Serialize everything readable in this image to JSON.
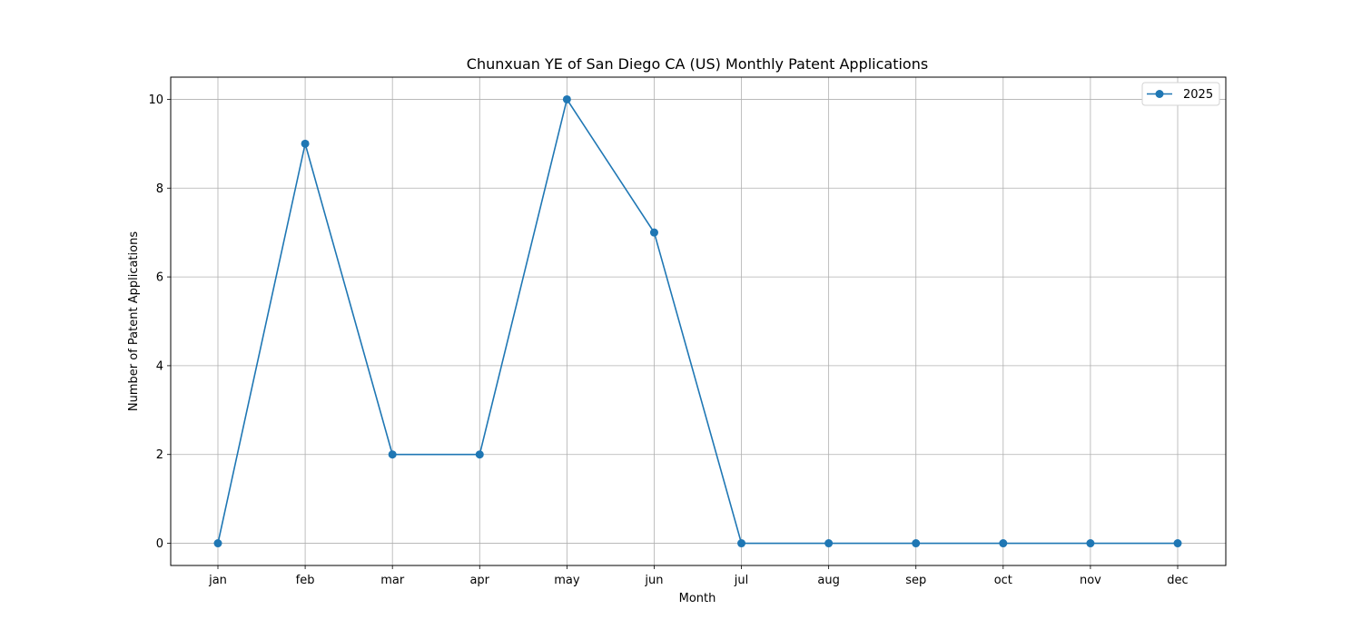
{
  "chart_data": {
    "type": "line",
    "title": "Chunxuan YE of San Diego CA (US) Monthly Patent Applications",
    "xlabel": "Month",
    "ylabel": "Number of Patent Applications",
    "categories": [
      "jan",
      "feb",
      "mar",
      "apr",
      "may",
      "jun",
      "jul",
      "aug",
      "sep",
      "oct",
      "nov",
      "dec"
    ],
    "series": [
      {
        "name": "2025",
        "values": [
          0,
          9,
          2,
          2,
          10,
          7,
          0,
          0,
          0,
          0,
          0,
          0
        ],
        "color": "#1f77b4"
      }
    ],
    "ylim": [
      -0.5,
      10.5
    ],
    "yticks": [
      0,
      2,
      4,
      6,
      8,
      10
    ],
    "grid": true,
    "legend_position": "top-right"
  },
  "colors": {
    "grid": "#b0b0b0",
    "axes": "#000000",
    "background": "#ffffff"
  }
}
